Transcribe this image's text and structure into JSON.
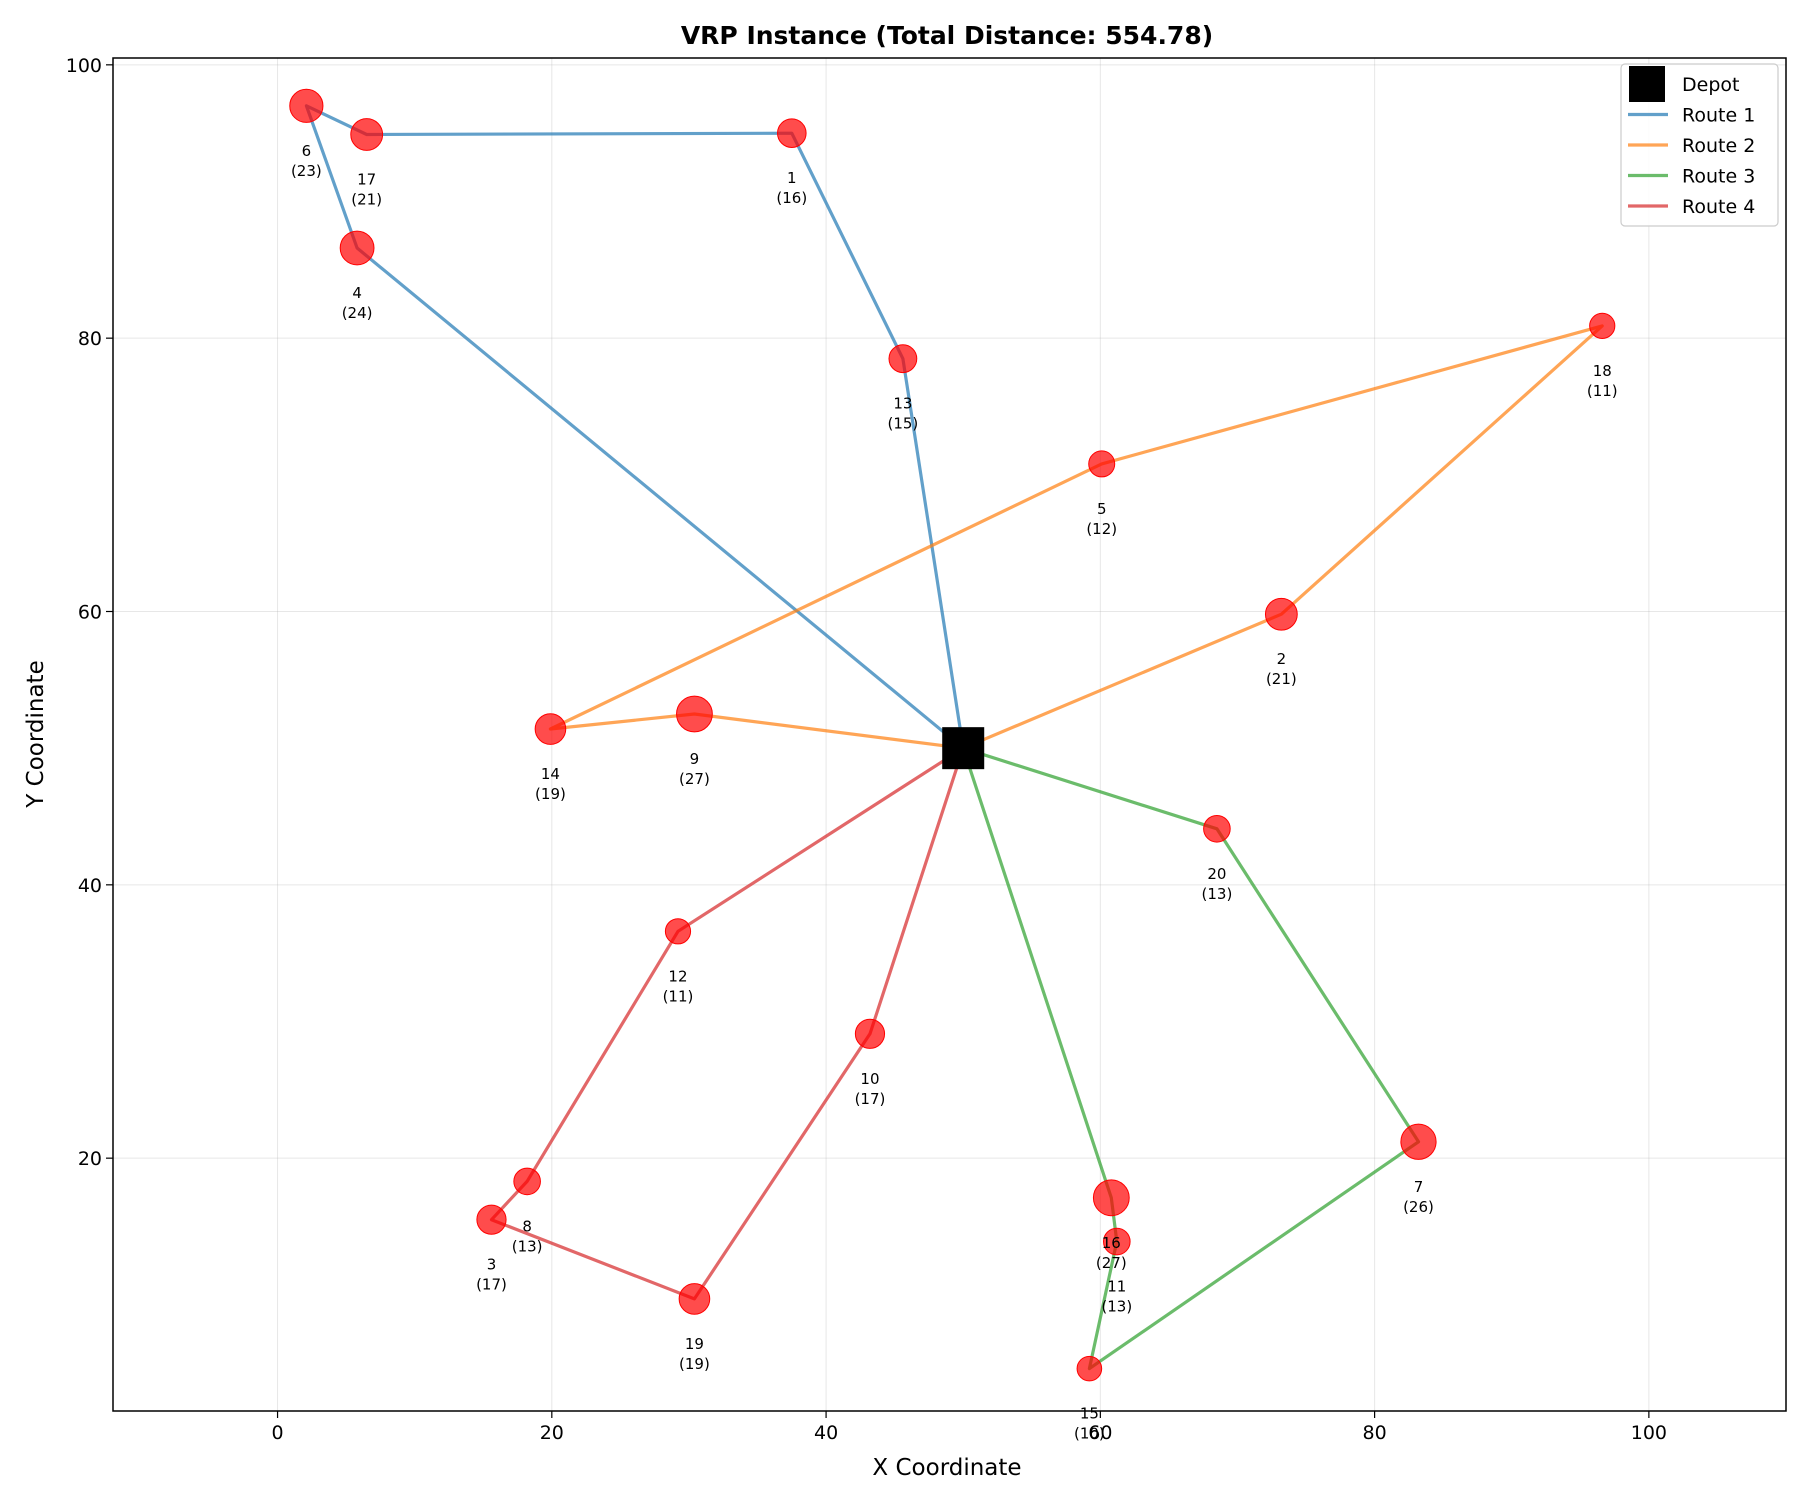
{
  "chart_data": {
    "type": "scatter",
    "title": "VRP Instance (Total Distance: 554.78)",
    "xlabel": "X Coordinate",
    "ylabel": "Y Coordinate",
    "xlim": [
      -12,
      110
    ],
    "ylim": [
      1.5,
      100.5
    ],
    "xticks": [
      0,
      20,
      40,
      60,
      80,
      100
    ],
    "yticks": [
      20,
      40,
      60,
      80,
      100
    ],
    "grid": true,
    "legend_position": "top-right",
    "depot": {
      "name": "Depot",
      "x": 50,
      "y": 50,
      "color": "#000000"
    },
    "customers": [
      {
        "id": "1",
        "demand": "(16)",
        "x": 37.5,
        "y": 95
      },
      {
        "id": "2",
        "demand": "(21)",
        "x": 73.2,
        "y": 59.8
      },
      {
        "id": "3",
        "demand": "(17)",
        "x": 15.6,
        "y": 15.5
      },
      {
        "id": "4",
        "demand": "(24)",
        "x": 5.8,
        "y": 86.6
      },
      {
        "id": "5",
        "demand": "(12)",
        "x": 60.1,
        "y": 70.8
      },
      {
        "id": "6",
        "demand": "(23)",
        "x": 2.1,
        "y": 97
      },
      {
        "id": "7",
        "demand": "(26)",
        "x": 83.2,
        "y": 21.2
      },
      {
        "id": "8",
        "demand": "(13)",
        "x": 18.2,
        "y": 18.3
      },
      {
        "id": "9",
        "demand": "(27)",
        "x": 30.4,
        "y": 52.5
      },
      {
        "id": "10",
        "demand": "(17)",
        "x": 43.2,
        "y": 29.1
      },
      {
        "id": "11",
        "demand": "(13)",
        "x": 61.2,
        "y": 13.9
      },
      {
        "id": "12",
        "demand": "(11)",
        "x": 29.2,
        "y": 36.6
      },
      {
        "id": "13",
        "demand": "(15)",
        "x": 45.6,
        "y": 78.5
      },
      {
        "id": "14",
        "demand": "(19)",
        "x": 19.9,
        "y": 51.4
      },
      {
        "id": "15",
        "demand": "(10)",
        "x": 59.2,
        "y": 4.6
      },
      {
        "id": "16",
        "demand": "(27)",
        "x": 60.8,
        "y": 17.1
      },
      {
        "id": "17",
        "demand": "(21)",
        "x": 6.5,
        "y": 94.9
      },
      {
        "id": "18",
        "demand": "(11)",
        "x": 96.6,
        "y": 80.9
      },
      {
        "id": "19",
        "demand": "(19)",
        "x": 30.4,
        "y": 9.7
      },
      {
        "id": "20",
        "demand": "(13)",
        "x": 68.5,
        "y": 44.1
      }
    ],
    "series": [
      {
        "name": "Route 1",
        "color": "#1f77b4",
        "stops": [
          "13",
          "1",
          "17",
          "6",
          "4"
        ]
      },
      {
        "name": "Route 2",
        "color": "#ff7f0e",
        "stops": [
          "2",
          "18",
          "5",
          "14",
          "9"
        ]
      },
      {
        "name": "Route 3",
        "color": "#2ca02c",
        "stops": [
          "20",
          "7",
          "15",
          "11",
          "16"
        ]
      },
      {
        "name": "Route 4",
        "color": "#d62728",
        "stops": [
          "10",
          "19",
          "3",
          "8",
          "12"
        ]
      }
    ]
  }
}
